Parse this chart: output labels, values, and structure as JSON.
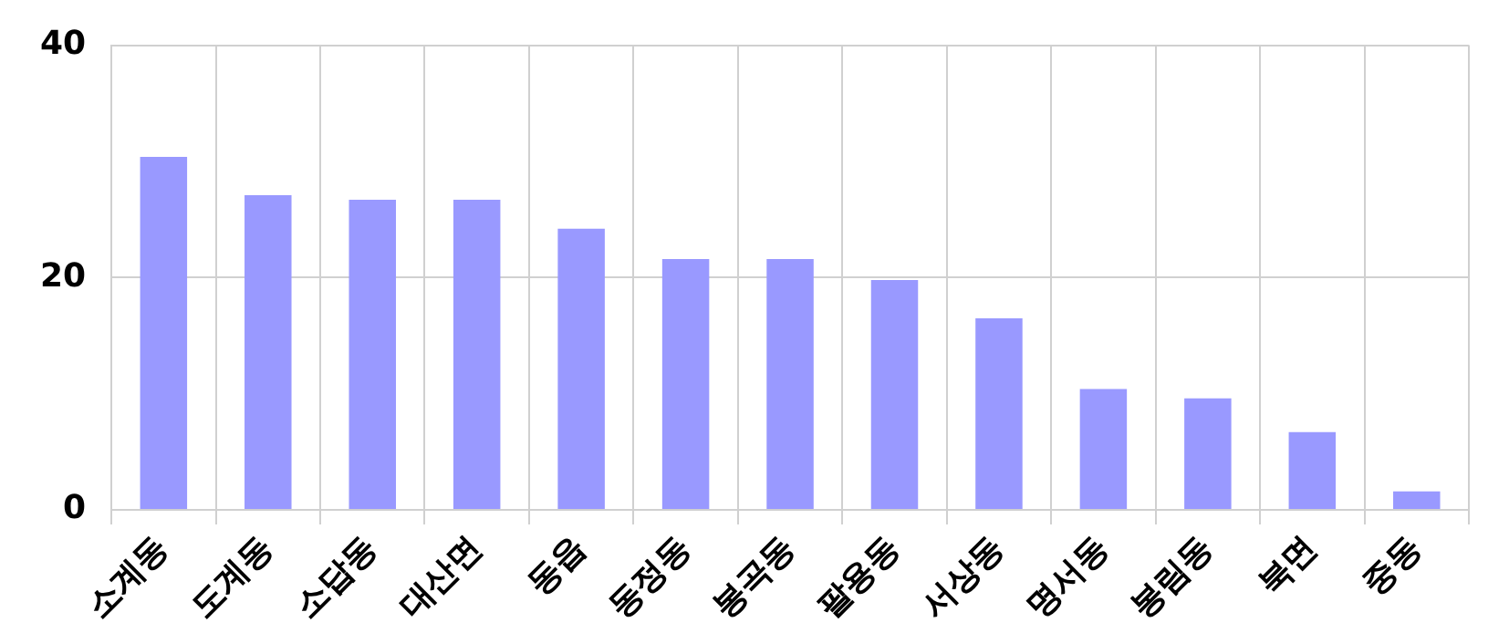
{
  "chart_data": {
    "type": "bar",
    "categories": [
      "소계동",
      "도계동",
      "소답동",
      "대산면",
      "동읍",
      "동정동",
      "봉곡동",
      "팔용동",
      "서상동",
      "명서동",
      "봉림동",
      "북면",
      "중동"
    ],
    "values": [
      30.4,
      27.1,
      26.7,
      26.7,
      24.2,
      21.6,
      21.6,
      19.8,
      16.5,
      10.4,
      9.6,
      6.7,
      1.6
    ],
    "color": "#9999ff",
    "ylim": [
      0,
      40
    ],
    "yticks": [
      0,
      20,
      40
    ],
    "grid": true,
    "legend": false
  }
}
